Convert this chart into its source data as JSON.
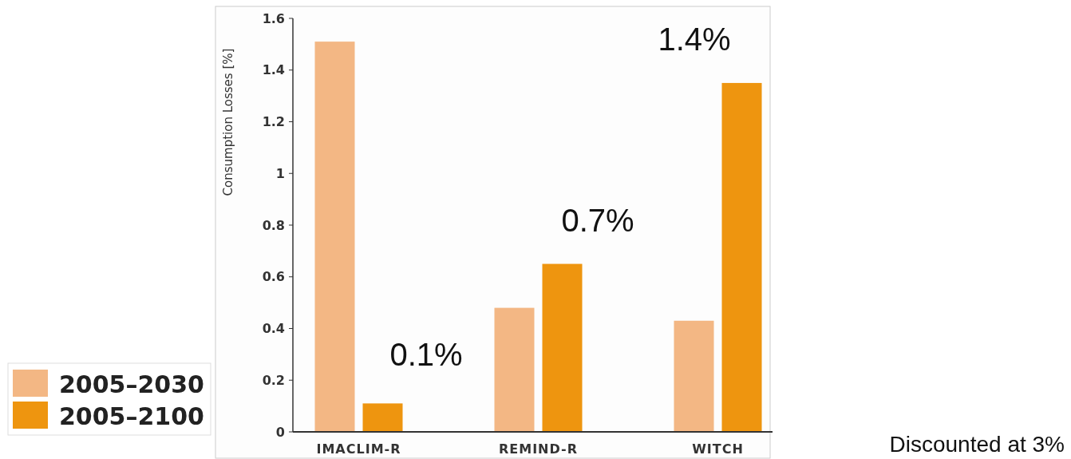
{
  "chart_data": {
    "type": "bar",
    "ylabel": "Consumption Losses [%]",
    "categories": [
      "IMACLIM-R",
      "REMIND-R",
      "WITCH"
    ],
    "series": [
      {
        "name": "2005–2030",
        "color": "#f3b784",
        "values": [
          1.51,
          0.48,
          0.43
        ]
      },
      {
        "name": "2005–2100",
        "color": "#ee950f",
        "values": [
          0.11,
          0.65,
          1.35
        ]
      }
    ],
    "ylim": [
      0,
      1.6
    ],
    "yticks": [
      0,
      0.2,
      0.4,
      0.6,
      0.8,
      1,
      1.2,
      1.4,
      1.6
    ],
    "grid": false,
    "legend": "bottom left",
    "annotations": [
      "0.1%",
      "0.7%",
      "1.4%",
      "Discounted at 3%"
    ]
  }
}
